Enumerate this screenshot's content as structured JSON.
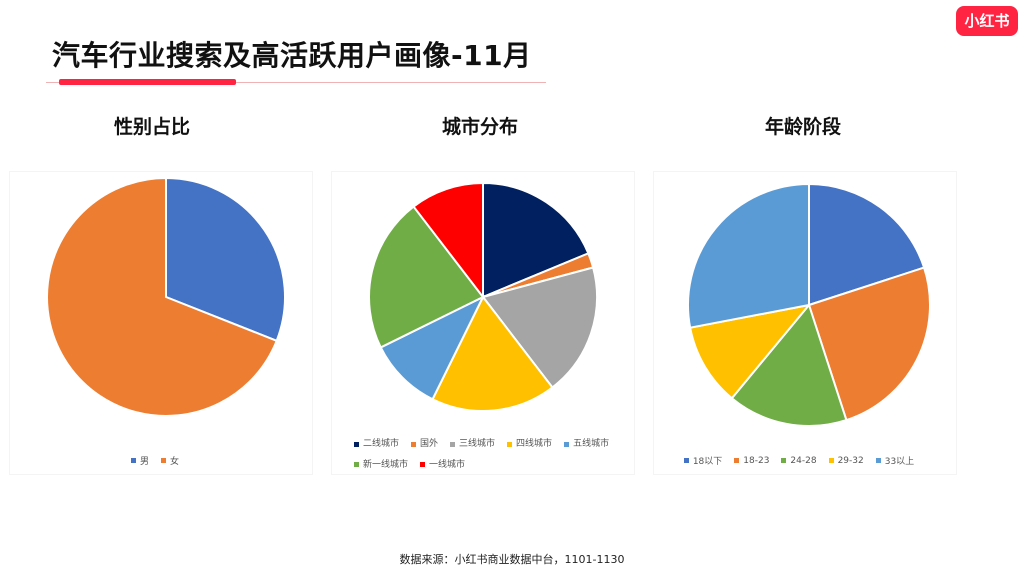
{
  "brand": {
    "logo_text": "小红书",
    "accent": "#ff2442"
  },
  "page": {
    "title": "汽车行业搜索及高活跃用户画像-11月",
    "footer": "数据来源：小红书商业数据中台，1101-1130"
  },
  "chart_data": [
    {
      "type": "pie",
      "title": "性别占比",
      "start_angle_deg": 0,
      "labels": [
        "男",
        "女"
      ],
      "values": [
        31,
        69
      ],
      "colors": [
        "#4472c4",
        "#ed7d31"
      ],
      "legend": "bottom"
    },
    {
      "type": "pie",
      "title": "城市分布",
      "start_angle_deg": 0,
      "labels": [
        "二线城市",
        "国外",
        "三线城市",
        "四线城市",
        "五线城市",
        "新一线城市",
        "一线城市"
      ],
      "values": [
        18,
        2,
        18,
        17,
        10,
        21,
        10
      ],
      "colors": [
        "#002060",
        "#ed7d31",
        "#a5a5a5",
        "#ffc000",
        "#5b9bd5",
        "#70ad47",
        "#ff0000"
      ],
      "legend": "bottom"
    },
    {
      "type": "pie",
      "title": "年龄阶段",
      "start_angle_deg": 0,
      "labels": [
        "18以下",
        "18-23",
        "24-28",
        "29-32",
        "33以上"
      ],
      "values": [
        20,
        25,
        16,
        11,
        28
      ],
      "colors": [
        "#4472c4",
        "#ed7d31",
        "#70ad47",
        "#ffc000",
        "#5b9bd5"
      ],
      "legend": "bottom"
    }
  ]
}
